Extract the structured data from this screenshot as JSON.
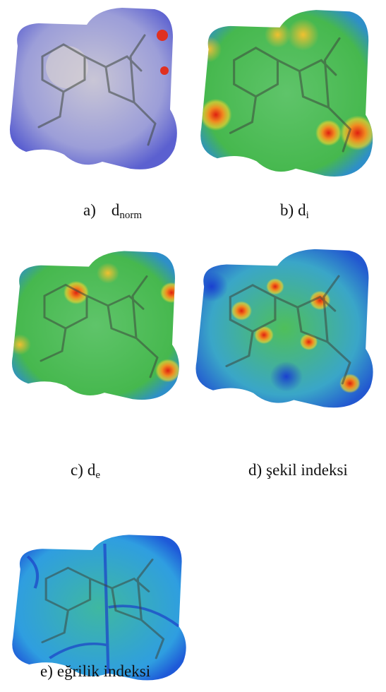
{
  "panels": [
    {
      "letter": "a)",
      "label": "d",
      "subscript": "norm"
    },
    {
      "letter": "b)",
      "label": "d",
      "subscript": "i"
    },
    {
      "letter": "c)",
      "label": "d",
      "subscript": "e"
    },
    {
      "letter": "d)",
      "label": "şekil indeksi"
    },
    {
      "letter": "e)",
      "label": "eğrilik indeksi"
    }
  ]
}
